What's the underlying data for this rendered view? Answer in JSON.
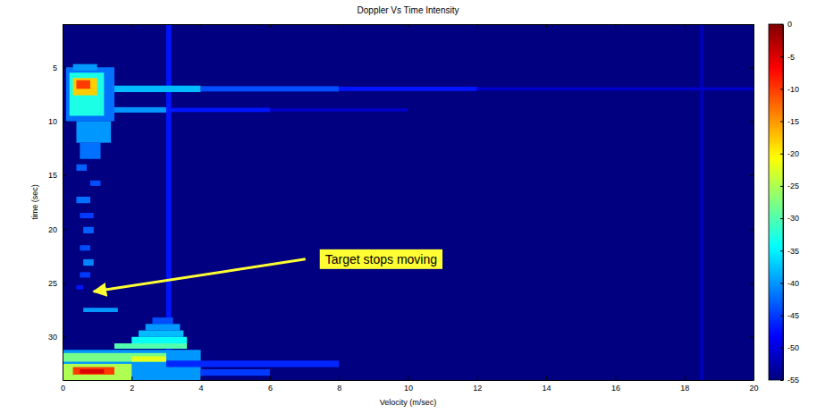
{
  "chart_data": {
    "type": "heatmap",
    "title": "Doppler Vs Time Intensity",
    "xlabel": "Velocity (m/sec)",
    "ylabel": "time (sec)",
    "xlim": [
      0,
      20
    ],
    "ylim": [
      1,
      34
    ],
    "xticks": [
      0,
      2,
      4,
      6,
      8,
      10,
      12,
      14,
      16,
      18,
      20
    ],
    "yticks": [
      5,
      10,
      15,
      20,
      25,
      30
    ],
    "colorbar": {
      "range": [
        -55,
        0
      ],
      "ticks": [
        0,
        -5,
        -10,
        -15,
        -20,
        -25,
        -30,
        -35,
        -40,
        -45,
        -50,
        -55
      ]
    },
    "cells": [
      [
        3.0,
        3.15,
        1,
        34,
        -47
      ],
      [
        18.45,
        18.55,
        1,
        34,
        -52
      ],
      [
        1.5,
        4,
        6.7,
        7.3,
        -38
      ],
      [
        4,
        8,
        6.75,
        7.25,
        -44
      ],
      [
        8,
        12,
        6.8,
        7.2,
        -47
      ],
      [
        12,
        20,
        6.85,
        7.15,
        -51
      ],
      [
        1,
        3,
        8.7,
        9.2,
        -40
      ],
      [
        3,
        6,
        8.75,
        9.15,
        -47
      ],
      [
        6,
        10,
        8.8,
        9.1,
        -51
      ],
      [
        0.1,
        1.5,
        5,
        10,
        -42
      ],
      [
        0.2,
        1.2,
        5.5,
        9.5,
        -33
      ],
      [
        0.3,
        1.0,
        6.0,
        7.6,
        -18
      ],
      [
        0.4,
        0.8,
        6.2,
        7.0,
        -10
      ],
      [
        0.3,
        1.0,
        4.7,
        5.3,
        -40
      ],
      [
        0.4,
        1.4,
        10,
        12,
        -40
      ],
      [
        0.5,
        1.1,
        12,
        13.5,
        -42
      ],
      [
        0.4,
        0.7,
        14,
        14.6,
        -43
      ],
      [
        0.8,
        1.1,
        15.5,
        16,
        -44
      ],
      [
        0.4,
        0.8,
        17,
        17.6,
        -42
      ],
      [
        0.5,
        0.9,
        18.5,
        19,
        -45
      ],
      [
        0.6,
        0.9,
        19.8,
        20.4,
        -43
      ],
      [
        0.5,
        0.8,
        21.5,
        22,
        -44
      ],
      [
        0.6,
        0.9,
        22.8,
        23.4,
        -41
      ],
      [
        0.5,
        0.8,
        24,
        24.5,
        -45
      ],
      [
        0.4,
        0.6,
        25.2,
        25.6,
        -47
      ],
      [
        0.6,
        1.6,
        27.3,
        27.7,
        -40
      ],
      [
        2.6,
        3.2,
        28.2,
        28.8,
        -44
      ],
      [
        2.4,
        3.4,
        28.8,
        29.4,
        -40
      ],
      [
        2.2,
        3.5,
        29.4,
        30,
        -38
      ],
      [
        2,
        3.6,
        30,
        30.6,
        -34
      ],
      [
        1.5,
        3.6,
        30.6,
        31.1,
        -30
      ],
      [
        0,
        4,
        31.2,
        34,
        -40
      ],
      [
        0,
        3,
        31.5,
        32.3,
        -28
      ],
      [
        3,
        8,
        32.2,
        32.8,
        -46
      ],
      [
        0,
        2,
        32.5,
        34,
        -25
      ],
      [
        0.3,
        1.5,
        32.8,
        33.5,
        -10
      ],
      [
        0.5,
        1.2,
        33,
        33.4,
        -5
      ],
      [
        4,
        6,
        33,
        33.6,
        -45
      ],
      [
        2,
        3,
        31.8,
        32.3,
        -22
      ]
    ],
    "annotations": [
      {
        "text": "Target stops moving",
        "xy": [
          0.9,
          25.8
        ],
        "xytext": [
          7.6,
          22.9
        ]
      }
    ]
  }
}
